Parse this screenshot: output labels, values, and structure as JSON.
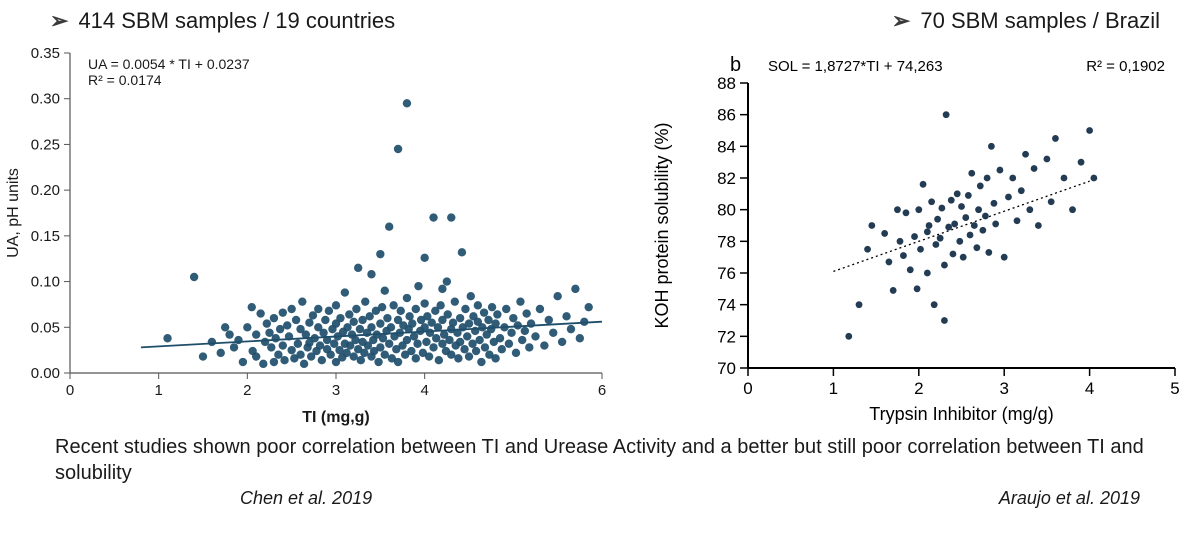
{
  "headers": {
    "left": "414 SBM samples / 19 countries",
    "right": "70 SBM samples / Brazil"
  },
  "caption": "Recent studies shown poor correlation between TI and Urease Activity and a better but still poor correlation between TI and solubility",
  "citations": {
    "left": "Chen et al. 2019",
    "right": "Araujo et al. 2019"
  },
  "chart_left": {
    "type": "scatter",
    "title_lines": [
      "UA = 0.0054 * TI + 0.0237",
      "R² = 0.0174"
    ],
    "title_fontsize": 14,
    "xlabel": "TI (mg,g)",
    "ylabel": "UA, pH units",
    "label_fontsize": 16,
    "tick_fontsize": 15,
    "xlim": [
      0,
      6
    ],
    "ylim": [
      0,
      0.35
    ],
    "xticks": [
      0,
      1,
      2,
      3,
      4,
      6
    ],
    "yticks": [
      0.0,
      0.05,
      0.1,
      0.15,
      0.2,
      0.25,
      0.3,
      0.35
    ],
    "point_color": "#1f4e6b",
    "point_radius": 4.2,
    "point_opacity": 0.92,
    "background_color": "#ffffff",
    "axis_color": "#555555",
    "grid_color": "#cccccc",
    "tick_length": 6,
    "trend": {
      "slope": 0.0054,
      "intercept": 0.0237,
      "x_start": 0.8,
      "x_end": 6.0,
      "color": "#1f4e6b",
      "width": 1.8
    },
    "points": [
      [
        1.1,
        0.038
      ],
      [
        1.4,
        0.105
      ],
      [
        1.5,
        0.018
      ],
      [
        1.6,
        0.034
      ],
      [
        1.7,
        0.022
      ],
      [
        1.75,
        0.05
      ],
      [
        1.8,
        0.042
      ],
      [
        1.85,
        0.028
      ],
      [
        1.9,
        0.036
      ],
      [
        1.95,
        0.012
      ],
      [
        2.0,
        0.05
      ],
      [
        2.05,
        0.072
      ],
      [
        2.06,
        0.024
      ],
      [
        2.1,
        0.018
      ],
      [
        2.1,
        0.042
      ],
      [
        2.15,
        0.065
      ],
      [
        2.18,
        0.01
      ],
      [
        2.2,
        0.034
      ],
      [
        2.22,
        0.054
      ],
      [
        2.25,
        0.044
      ],
      [
        2.27,
        0.028
      ],
      [
        2.3,
        0.06
      ],
      [
        2.3,
        0.012
      ],
      [
        2.32,
        0.038
      ],
      [
        2.35,
        0.02
      ],
      [
        2.37,
        0.048
      ],
      [
        2.4,
        0.066
      ],
      [
        2.4,
        0.03
      ],
      [
        2.42,
        0.014
      ],
      [
        2.45,
        0.052
      ],
      [
        2.47,
        0.04
      ],
      [
        2.5,
        0.025
      ],
      [
        2.5,
        0.07
      ],
      [
        2.53,
        0.016
      ],
      [
        2.55,
        0.058
      ],
      [
        2.57,
        0.032
      ],
      [
        2.6,
        0.048
      ],
      [
        2.6,
        0.02
      ],
      [
        2.62,
        0.078
      ],
      [
        2.64,
        0.01
      ],
      [
        2.66,
        0.042
      ],
      [
        2.68,
        0.028
      ],
      [
        2.7,
        0.055
      ],
      [
        2.7,
        0.033
      ],
      [
        2.72,
        0.018
      ],
      [
        2.74,
        0.063
      ],
      [
        2.76,
        0.038
      ],
      [
        2.78,
        0.024
      ],
      [
        2.8,
        0.05
      ],
      [
        2.8,
        0.07
      ],
      [
        2.82,
        0.03
      ],
      [
        2.84,
        0.014
      ],
      [
        2.86,
        0.044
      ],
      [
        2.88,
        0.058
      ],
      [
        2.9,
        0.026
      ],
      [
        2.9,
        0.036
      ],
      [
        2.92,
        0.068
      ],
      [
        2.94,
        0.02
      ],
      [
        2.96,
        0.048
      ],
      [
        2.98,
        0.032
      ],
      [
        3.0,
        0.054
      ],
      [
        3.0,
        0.012
      ],
      [
        3.0,
        0.074
      ],
      [
        3.02,
        0.04
      ],
      [
        3.04,
        0.025
      ],
      [
        3.05,
        0.06
      ],
      [
        3.07,
        0.017
      ],
      [
        3.08,
        0.045
      ],
      [
        3.1,
        0.032
      ],
      [
        3.1,
        0.088
      ],
      [
        3.12,
        0.022
      ],
      [
        3.13,
        0.05
      ],
      [
        3.15,
        0.064
      ],
      [
        3.16,
        0.03
      ],
      [
        3.18,
        0.042
      ],
      [
        3.2,
        0.018
      ],
      [
        3.2,
        0.056
      ],
      [
        3.22,
        0.036
      ],
      [
        3.23,
        0.07
      ],
      [
        3.25,
        0.026
      ],
      [
        3.25,
        0.115
      ],
      [
        3.27,
        0.048
      ],
      [
        3.28,
        0.014
      ],
      [
        3.3,
        0.058
      ],
      [
        3.3,
        0.034
      ],
      [
        3.32,
        0.022
      ],
      [
        3.33,
        0.078
      ],
      [
        3.35,
        0.044
      ],
      [
        3.36,
        0.03
      ],
      [
        3.38,
        0.062
      ],
      [
        3.4,
        0.018
      ],
      [
        3.4,
        0.05
      ],
      [
        3.4,
        0.108
      ],
      [
        3.42,
        0.036
      ],
      [
        3.43,
        0.024
      ],
      [
        3.45,
        0.068
      ],
      [
        3.46,
        0.042
      ],
      [
        3.48,
        0.012
      ],
      [
        3.5,
        0.054
      ],
      [
        3.5,
        0.13
      ],
      [
        3.5,
        0.028
      ],
      [
        3.52,
        0.072
      ],
      [
        3.53,
        0.038
      ],
      [
        3.55,
        0.02
      ],
      [
        3.55,
        0.09
      ],
      [
        3.57,
        0.046
      ],
      [
        3.58,
        0.06
      ],
      [
        3.6,
        0.032
      ],
      [
        3.6,
        0.16
      ],
      [
        3.62,
        0.05
      ],
      [
        3.63,
        0.016
      ],
      [
        3.65,
        0.074
      ],
      [
        3.66,
        0.04
      ],
      [
        3.68,
        0.026
      ],
      [
        3.7,
        0.058
      ],
      [
        3.7,
        0.245
      ],
      [
        3.7,
        0.012
      ],
      [
        3.72,
        0.044
      ],
      [
        3.73,
        0.068
      ],
      [
        3.75,
        0.03
      ],
      [
        3.76,
        0.052
      ],
      [
        3.78,
        0.02
      ],
      [
        3.8,
        0.082
      ],
      [
        3.8,
        0.036
      ],
      [
        3.8,
        0.295
      ],
      [
        3.82,
        0.048
      ],
      [
        3.83,
        0.062
      ],
      [
        3.85,
        0.024
      ],
      [
        3.86,
        0.054
      ],
      [
        3.88,
        0.04
      ],
      [
        3.9,
        0.016
      ],
      [
        3.9,
        0.07
      ],
      [
        3.92,
        0.032
      ],
      [
        3.93,
        0.095
      ],
      [
        3.95,
        0.046
      ],
      [
        3.96,
        0.058
      ],
      [
        3.98,
        0.022
      ],
      [
        4.0,
        0.05
      ],
      [
        4.0,
        0.076
      ],
      [
        4.0,
        0.126
      ],
      [
        4.02,
        0.034
      ],
      [
        4.03,
        0.062
      ],
      [
        4.05,
        0.018
      ],
      [
        4.06,
        0.044
      ],
      [
        4.08,
        0.055
      ],
      [
        4.1,
        0.028
      ],
      [
        4.1,
        0.17
      ],
      [
        4.12,
        0.068
      ],
      [
        4.13,
        0.038
      ],
      [
        4.15,
        0.05
      ],
      [
        4.16,
        0.014
      ],
      [
        4.18,
        0.074
      ],
      [
        4.2,
        0.032
      ],
      [
        4.2,
        0.092
      ],
      [
        4.2,
        0.058
      ],
      [
        4.22,
        0.042
      ],
      [
        4.24,
        0.024
      ],
      [
        4.25,
        0.1
      ],
      [
        4.26,
        0.064
      ],
      [
        4.28,
        0.036
      ],
      [
        4.3,
        0.048
      ],
      [
        4.3,
        0.17
      ],
      [
        4.3,
        0.02
      ],
      [
        4.32,
        0.055
      ],
      [
        4.34,
        0.078
      ],
      [
        4.35,
        0.03
      ],
      [
        4.37,
        0.044
      ],
      [
        4.38,
        0.016
      ],
      [
        4.4,
        0.06
      ],
      [
        4.4,
        0.034
      ],
      [
        4.42,
        0.132
      ],
      [
        4.43,
        0.05
      ],
      [
        4.45,
        0.026
      ],
      [
        4.46,
        0.07
      ],
      [
        4.48,
        0.04
      ],
      [
        4.5,
        0.054
      ],
      [
        4.5,
        0.018
      ],
      [
        4.52,
        0.084
      ],
      [
        4.54,
        0.032
      ],
      [
        4.55,
        0.062
      ],
      [
        4.57,
        0.046
      ],
      [
        4.58,
        0.024
      ],
      [
        4.6,
        0.056
      ],
      [
        4.6,
        0.074
      ],
      [
        4.62,
        0.036
      ],
      [
        4.64,
        0.012
      ],
      [
        4.65,
        0.05
      ],
      [
        4.67,
        0.066
      ],
      [
        4.68,
        0.028
      ],
      [
        4.7,
        0.042
      ],
      [
        4.72,
        0.058
      ],
      [
        4.73,
        0.02
      ],
      [
        4.75,
        0.048
      ],
      [
        4.76,
        0.072
      ],
      [
        4.78,
        0.034
      ],
      [
        4.8,
        0.054
      ],
      [
        4.8,
        0.016
      ],
      [
        4.82,
        0.064
      ],
      [
        4.85,
        0.038
      ],
      [
        4.87,
        0.026
      ],
      [
        4.9,
        0.05
      ],
      [
        4.92,
        0.07
      ],
      [
        4.95,
        0.032
      ],
      [
        4.98,
        0.044
      ],
      [
        5.0,
        0.06
      ],
      [
        5.03,
        0.022
      ],
      [
        5.05,
        0.052
      ],
      [
        5.08,
        0.078
      ],
      [
        5.1,
        0.036
      ],
      [
        5.13,
        0.046
      ],
      [
        5.15,
        0.065
      ],
      [
        5.18,
        0.028
      ],
      [
        5.2,
        0.054
      ],
      [
        5.25,
        0.04
      ],
      [
        5.3,
        0.07
      ],
      [
        5.35,
        0.03
      ],
      [
        5.4,
        0.058
      ],
      [
        5.45,
        0.044
      ],
      [
        5.5,
        0.084
      ],
      [
        5.55,
        0.034
      ],
      [
        5.6,
        0.062
      ],
      [
        5.65,
        0.048
      ],
      [
        5.7,
        0.092
      ],
      [
        5.75,
        0.038
      ],
      [
        5.8,
        0.056
      ],
      [
        5.85,
        0.072
      ]
    ]
  },
  "chart_right": {
    "type": "scatter",
    "panel_label": "b",
    "equation": "SOL = 1,8727*TI + 74,263",
    "r2_label": "R² = 0,1902",
    "title_fontsize": 14,
    "xlabel": "Trypsin Inhibitor (mg/g)",
    "ylabel": "KOH protein solubility (%)",
    "label_fontsize": 18,
    "tick_fontsize": 17,
    "xlim": [
      0,
      5
    ],
    "ylim": [
      70,
      88
    ],
    "xticks": [
      0,
      1,
      2,
      3,
      4,
      5
    ],
    "yticks": [
      70,
      72,
      74,
      76,
      78,
      80,
      82,
      84,
      86,
      88
    ],
    "point_color": "#17324a",
    "point_radius": 3.4,
    "point_opacity": 0.95,
    "background_color": "#ffffff",
    "axis_color": "#000000",
    "axis_width": 2,
    "tick_length": 8,
    "trend": {
      "style": "dotted",
      "color": "#000000",
      "width": 1.3,
      "x_start": 1.0,
      "x_end": 4.0,
      "y_start": 76.1,
      "y_end": 81.8
    },
    "points": [
      [
        1.18,
        72.0
      ],
      [
        1.3,
        74.0
      ],
      [
        1.4,
        77.5
      ],
      [
        1.45,
        79.0
      ],
      [
        1.6,
        78.5
      ],
      [
        1.65,
        76.7
      ],
      [
        1.7,
        74.9
      ],
      [
        1.75,
        80.0
      ],
      [
        1.78,
        78.0
      ],
      [
        1.82,
        77.1
      ],
      [
        1.85,
        79.8
      ],
      [
        1.9,
        76.2
      ],
      [
        1.95,
        78.3
      ],
      [
        1.98,
        75.0
      ],
      [
        2.0,
        80.0
      ],
      [
        2.02,
        77.5
      ],
      [
        2.05,
        81.6
      ],
      [
        2.1,
        78.6
      ],
      [
        2.1,
        76.0
      ],
      [
        2.12,
        79.0
      ],
      [
        2.15,
        80.5
      ],
      [
        2.18,
        74.0
      ],
      [
        2.2,
        77.8
      ],
      [
        2.22,
        79.4
      ],
      [
        2.25,
        78.2
      ],
      [
        2.27,
        80.1
      ],
      [
        2.3,
        76.5
      ],
      [
        2.3,
        73.0
      ],
      [
        2.32,
        86.0
      ],
      [
        2.35,
        78.9
      ],
      [
        2.38,
        80.6
      ],
      [
        2.4,
        77.2
      ],
      [
        2.42,
        79.1
      ],
      [
        2.45,
        81.0
      ],
      [
        2.48,
        78.0
      ],
      [
        2.5,
        80.2
      ],
      [
        2.52,
        77.0
      ],
      [
        2.55,
        79.5
      ],
      [
        2.58,
        80.9
      ],
      [
        2.6,
        78.4
      ],
      [
        2.62,
        82.3
      ],
      [
        2.65,
        79.0
      ],
      [
        2.68,
        77.6
      ],
      [
        2.7,
        80.0
      ],
      [
        2.72,
        81.5
      ],
      [
        2.75,
        78.7
      ],
      [
        2.78,
        79.6
      ],
      [
        2.8,
        82.0
      ],
      [
        2.82,
        77.3
      ],
      [
        2.85,
        84.0
      ],
      [
        2.88,
        80.4
      ],
      [
        2.9,
        79.1
      ],
      [
        2.95,
        82.5
      ],
      [
        3.0,
        77.0
      ],
      [
        3.05,
        80.8
      ],
      [
        3.1,
        82.0
      ],
      [
        3.15,
        79.3
      ],
      [
        3.2,
        81.2
      ],
      [
        3.25,
        83.5
      ],
      [
        3.3,
        80.0
      ],
      [
        3.35,
        82.6
      ],
      [
        3.4,
        79.0
      ],
      [
        3.5,
        83.2
      ],
      [
        3.55,
        80.5
      ],
      [
        3.6,
        84.5
      ],
      [
        3.7,
        82.0
      ],
      [
        3.8,
        80.0
      ],
      [
        3.9,
        83.0
      ],
      [
        4.0,
        85.0
      ],
      [
        4.05,
        82.0
      ]
    ]
  }
}
